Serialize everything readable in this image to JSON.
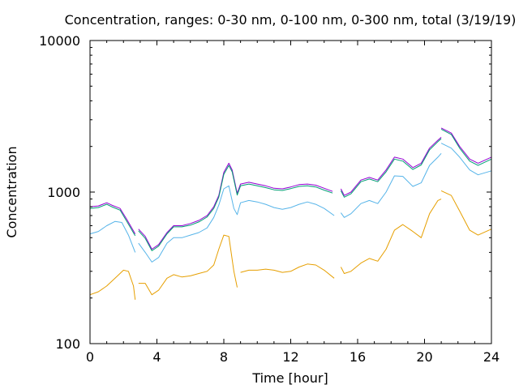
{
  "chart_data": {
    "type": "line",
    "title": "Concentration, ranges: 0-30 nm, 0-100 nm, 0-300 nm, total (3/19/19)",
    "xlabel": "Time [hour]",
    "ylabel": "Concentration",
    "xlim": [
      0,
      24
    ],
    "ylim": [
      100,
      10000
    ],
    "yscale": "log",
    "grid": false,
    "xticks": [
      0,
      4,
      8,
      12,
      16,
      20,
      24
    ],
    "xtick_labels": [
      "0",
      "4",
      "8",
      "12",
      "16",
      "20",
      "24"
    ],
    "yticks": [
      100,
      1000,
      10000
    ],
    "ytick_labels": [
      "100",
      "1000",
      "10000"
    ],
    "colors": {
      "total": "#9400d3",
      "range_0_300": "#009e73",
      "range_0_100": "#56b4e9",
      "range_0_30": "#e69f00"
    },
    "series": [
      {
        "key": "total",
        "color": "#9400d3",
        "segments": [
          [
            [
              0,
              800
            ],
            [
              0.5,
              810
            ],
            [
              1.0,
              850
            ],
            [
              1.3,
              820
            ],
            [
              1.8,
              780
            ],
            [
              2.2,
              660
            ],
            [
              2.7,
              530
            ]
          ],
          [
            [
              2.9,
              570
            ],
            [
              3.3,
              510
            ],
            [
              3.7,
              420
            ],
            [
              4.1,
              450
            ],
            [
              4.6,
              540
            ],
            [
              5.0,
              600
            ],
            [
              5.5,
              600
            ],
            [
              6.0,
              620
            ],
            [
              6.5,
              650
            ],
            [
              7.0,
              700
            ],
            [
              7.4,
              800
            ],
            [
              7.7,
              950
            ],
            [
              8.0,
              1350
            ],
            [
              8.3,
              1550
            ],
            [
              8.5,
              1400
            ],
            [
              8.8,
              980
            ],
            [
              9.0,
              1130
            ],
            [
              9.5,
              1160
            ],
            [
              10.0,
              1130
            ],
            [
              10.5,
              1100
            ],
            [
              11.0,
              1060
            ],
            [
              11.5,
              1050
            ],
            [
              12.0,
              1080
            ],
            [
              12.5,
              1120
            ],
            [
              13.0,
              1130
            ],
            [
              13.5,
              1110
            ],
            [
              14.0,
              1060
            ],
            [
              14.5,
              1010
            ]
          ],
          [
            [
              15.0,
              1050
            ],
            [
              15.2,
              950
            ],
            [
              15.6,
              1000
            ],
            [
              16.2,
              1200
            ],
            [
              16.7,
              1250
            ],
            [
              17.2,
              1200
            ],
            [
              17.7,
              1400
            ],
            [
              18.2,
              1700
            ],
            [
              18.7,
              1650
            ],
            [
              19.3,
              1450
            ],
            [
              19.8,
              1550
            ],
            [
              20.3,
              1950
            ],
            [
              20.8,
              2200
            ],
            [
              21.0,
              2300
            ]
          ],
          [
            [
              21.0,
              2650
            ],
            [
              21.6,
              2450
            ],
            [
              22.1,
              2000
            ],
            [
              22.7,
              1650
            ],
            [
              23.2,
              1550
            ],
            [
              24.0,
              1700
            ]
          ]
        ]
      },
      {
        "key": "range_0_300",
        "color": "#009e73",
        "segments": [
          [
            [
              0,
              780
            ],
            [
              0.5,
              790
            ],
            [
              1.0,
              830
            ],
            [
              1.3,
              800
            ],
            [
              1.8,
              760
            ],
            [
              2.2,
              640
            ],
            [
              2.7,
              515
            ]
          ],
          [
            [
              2.9,
              555
            ],
            [
              3.3,
              495
            ],
            [
              3.7,
              410
            ],
            [
              4.1,
              440
            ],
            [
              4.6,
              530
            ],
            [
              5.0,
              590
            ],
            [
              5.5,
              590
            ],
            [
              6.0,
              605
            ],
            [
              6.5,
              635
            ],
            [
              7.0,
              685
            ],
            [
              7.4,
              780
            ],
            [
              7.7,
              925
            ],
            [
              8.0,
              1310
            ],
            [
              8.3,
              1500
            ],
            [
              8.5,
              1360
            ],
            [
              8.8,
              955
            ],
            [
              9.0,
              1100
            ],
            [
              9.5,
              1130
            ],
            [
              10.0,
              1100
            ],
            [
              10.5,
              1070
            ],
            [
              11.0,
              1035
            ],
            [
              11.5,
              1025
            ],
            [
              12.0,
              1055
            ],
            [
              12.5,
              1090
            ],
            [
              13.0,
              1100
            ],
            [
              13.5,
              1080
            ],
            [
              14.0,
              1030
            ],
            [
              14.5,
              985
            ]
          ],
          [
            [
              15.0,
              1020
            ],
            [
              15.2,
              925
            ],
            [
              15.6,
              975
            ],
            [
              16.2,
              1170
            ],
            [
              16.7,
              1220
            ],
            [
              17.2,
              1170
            ],
            [
              17.7,
              1360
            ],
            [
              18.2,
              1650
            ],
            [
              18.7,
              1600
            ],
            [
              19.3,
              1410
            ],
            [
              19.8,
              1510
            ],
            [
              20.3,
              1900
            ],
            [
              20.8,
              2150
            ],
            [
              21.0,
              2250
            ]
          ],
          [
            [
              21.0,
              2600
            ],
            [
              21.6,
              2400
            ],
            [
              22.1,
              1950
            ],
            [
              22.7,
              1600
            ],
            [
              23.2,
              1500
            ],
            [
              24.0,
              1650
            ]
          ]
        ]
      },
      {
        "key": "range_0_100",
        "color": "#56b4e9",
        "segments": [
          [
            [
              0,
              530
            ],
            [
              0.5,
              550
            ],
            [
              1.0,
              600
            ],
            [
              1.5,
              640
            ],
            [
              1.9,
              630
            ],
            [
              2.3,
              520
            ],
            [
              2.7,
              400
            ]
          ],
          [
            [
              2.9,
              460
            ],
            [
              3.3,
              400
            ],
            [
              3.7,
              345
            ],
            [
              4.1,
              370
            ],
            [
              4.6,
              460
            ],
            [
              5.0,
              500
            ],
            [
              5.5,
              500
            ],
            [
              6.0,
              520
            ],
            [
              6.5,
              540
            ],
            [
              7.0,
              580
            ],
            [
              7.4,
              680
            ],
            [
              7.7,
              820
            ],
            [
              8.0,
              1050
            ],
            [
              8.3,
              1100
            ],
            [
              8.6,
              780
            ],
            [
              8.8,
              710
            ],
            [
              9.0,
              850
            ],
            [
              9.5,
              880
            ],
            [
              10.0,
              860
            ],
            [
              10.5,
              830
            ],
            [
              11.0,
              790
            ],
            [
              11.5,
              770
            ],
            [
              12.0,
              790
            ],
            [
              12.5,
              830
            ],
            [
              13.0,
              860
            ],
            [
              13.5,
              830
            ],
            [
              14.0,
              780
            ],
            [
              14.6,
              700
            ]
          ],
          [
            [
              15.0,
              730
            ],
            [
              15.2,
              680
            ],
            [
              15.6,
              720
            ],
            [
              16.2,
              840
            ],
            [
              16.7,
              880
            ],
            [
              17.2,
              840
            ],
            [
              17.7,
              1000
            ],
            [
              18.2,
              1280
            ],
            [
              18.7,
              1270
            ],
            [
              19.3,
              1090
            ],
            [
              19.8,
              1150
            ],
            [
              20.3,
              1500
            ],
            [
              20.8,
              1700
            ],
            [
              21.0,
              1800
            ]
          ],
          [
            [
              21.0,
              2100
            ],
            [
              21.6,
              1950
            ],
            [
              22.1,
              1700
            ],
            [
              22.7,
              1400
            ],
            [
              23.2,
              1300
            ],
            [
              24.0,
              1380
            ]
          ]
        ]
      },
      {
        "key": "range_0_30",
        "color": "#e69f00",
        "segments": [
          [
            [
              0,
              210
            ],
            [
              0.5,
              220
            ],
            [
              1.0,
              240
            ],
            [
              1.5,
              270
            ],
            [
              2.0,
              305
            ],
            [
              2.3,
              300
            ],
            [
              2.6,
              240
            ],
            [
              2.7,
              195
            ]
          ],
          [
            [
              2.9,
              250
            ],
            [
              3.3,
              250
            ],
            [
              3.7,
              210
            ],
            [
              4.1,
              225
            ],
            [
              4.6,
              270
            ],
            [
              5.0,
              285
            ],
            [
              5.5,
              275
            ],
            [
              6.0,
              280
            ],
            [
              6.5,
              290
            ],
            [
              7.0,
              300
            ],
            [
              7.4,
              330
            ],
            [
              7.7,
              420
            ],
            [
              8.0,
              520
            ],
            [
              8.3,
              510
            ],
            [
              8.6,
              300
            ],
            [
              8.8,
              235
            ]
          ],
          [
            [
              9.0,
              295
            ],
            [
              9.5,
              305
            ],
            [
              10.0,
              305
            ],
            [
              10.5,
              310
            ],
            [
              11.0,
              305
            ],
            [
              11.5,
              295
            ],
            [
              12.0,
              300
            ],
            [
              12.5,
              320
            ],
            [
              13.0,
              335
            ],
            [
              13.5,
              330
            ],
            [
              14.0,
              305
            ],
            [
              14.6,
              270
            ]
          ],
          [
            [
              15.0,
              320
            ],
            [
              15.2,
              290
            ],
            [
              15.6,
              300
            ],
            [
              16.2,
              340
            ],
            [
              16.7,
              365
            ],
            [
              17.2,
              350
            ],
            [
              17.7,
              420
            ],
            [
              18.2,
              560
            ],
            [
              18.7,
              610
            ],
            [
              19.3,
              550
            ],
            [
              19.8,
              500
            ],
            [
              20.3,
              720
            ],
            [
              20.8,
              880
            ],
            [
              21.0,
              900
            ]
          ],
          [
            [
              21.0,
              1020
            ],
            [
              21.6,
              950
            ],
            [
              22.1,
              750
            ],
            [
              22.7,
              560
            ],
            [
              23.2,
              520
            ],
            [
              24.0,
              570
            ]
          ]
        ]
      }
    ]
  }
}
